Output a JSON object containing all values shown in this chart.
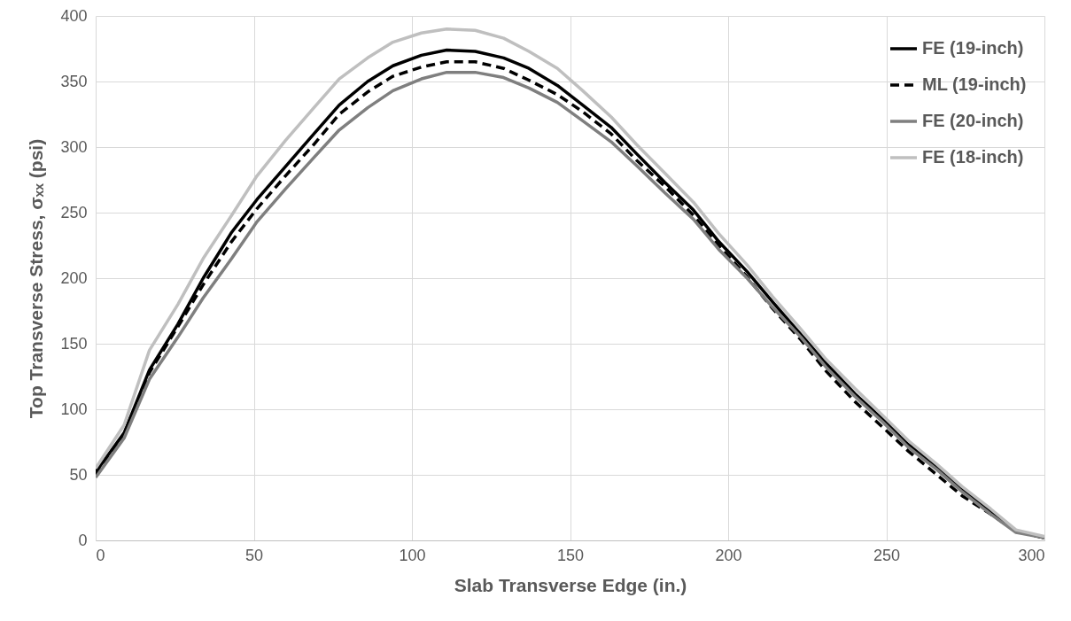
{
  "chart_data": {
    "type": "line",
    "xlabel": "Slab Transverse Edge (in.)",
    "ylabel": "Top Transverse Stress, σₓₓ (psi)",
    "xlim": [
      0,
      300
    ],
    "xticks": [
      0,
      50,
      100,
      150,
      200,
      250,
      300
    ],
    "ylim": [
      0,
      400
    ],
    "yticks": [
      0,
      50,
      100,
      150,
      200,
      250,
      300,
      350,
      400
    ],
    "grid": true,
    "legend": "top right",
    "marker": "none",
    "x": [
      0,
      9,
      17,
      26,
      34,
      43,
      51,
      60,
      69,
      77,
      86,
      94,
      103,
      111,
      120,
      129,
      137,
      146,
      154,
      163,
      171,
      180,
      189,
      197,
      206,
      214,
      223,
      231,
      240,
      249,
      257,
      266,
      274,
      283,
      291,
      300
    ],
    "series": [
      {
        "name": "FE (19-inch)",
        "color": "#000000",
        "line_style": "solid",
        "values": [
          52,
          82,
          130,
          165,
          200,
          235,
          260,
          285,
          310,
          332,
          350,
          362,
          370,
          374,
          373,
          368,
          360,
          347,
          332,
          315,
          295,
          273,
          252,
          228,
          205,
          182,
          157,
          135,
          112,
          92,
          73,
          56,
          39,
          22,
          7,
          2
        ]
      },
      {
        "name": "ML (19-inch)",
        "color": "#000000",
        "line_style": "dashed",
        "values": [
          50,
          80,
          128,
          163,
          195,
          228,
          253,
          278,
          302,
          325,
          342,
          354,
          361,
          365,
          365,
          360,
          351,
          340,
          327,
          310,
          290,
          270,
          248,
          225,
          201,
          177,
          153,
          129,
          106,
          86,
          68,
          50,
          34,
          20,
          7,
          2
        ]
      },
      {
        "name": "FE (20-inch)",
        "color": "#7f7f7f",
        "line_style": "solid",
        "values": [
          48,
          78,
          123,
          155,
          185,
          215,
          243,
          268,
          292,
          313,
          330,
          343,
          352,
          357,
          357,
          353,
          345,
          334,
          320,
          304,
          286,
          265,
          245,
          222,
          200,
          178,
          155,
          132,
          110,
          90,
          71,
          54,
          37,
          20,
          6,
          2
        ]
      },
      {
        "name": "FE (18-inch)",
        "color": "#bfbfbf",
        "line_style": "solid",
        "values": [
          55,
          88,
          145,
          180,
          215,
          248,
          278,
          305,
          330,
          352,
          368,
          380,
          387,
          390,
          389,
          383,
          373,
          360,
          343,
          323,
          302,
          280,
          258,
          234,
          210,
          186,
          161,
          138,
          116,
          95,
          76,
          58,
          41,
          24,
          8,
          3
        ]
      }
    ]
  }
}
